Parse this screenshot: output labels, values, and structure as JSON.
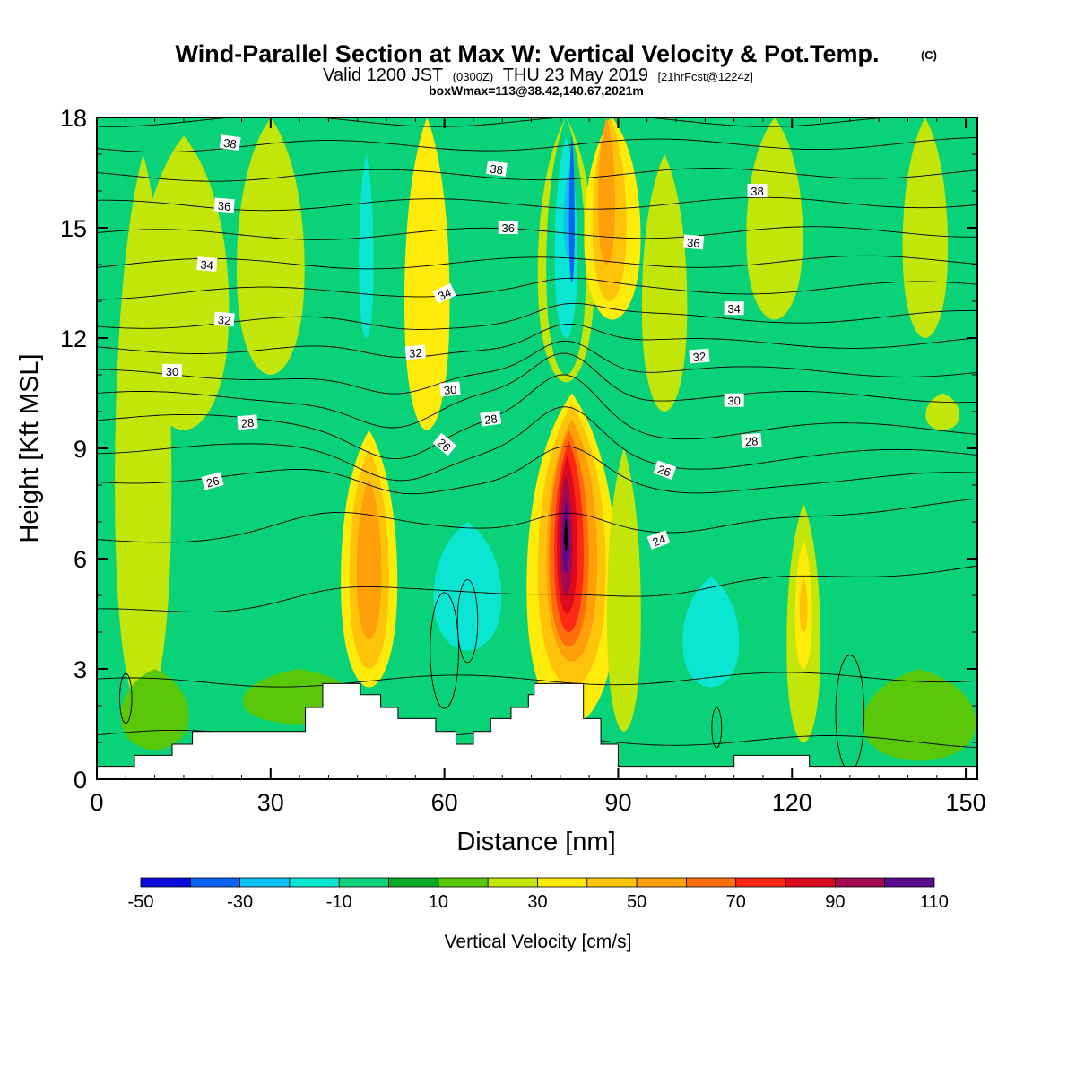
{
  "title": {
    "main": "Wind-Parallel Section at Max W: Vertical Velocity & Pot.Temp.",
    "copyright": "(C)",
    "valid_prefix": "Valid 1200 JST",
    "valid_zulu": "(0300Z)",
    "valid_date": "THU 23 May 2019",
    "forecast": "[21hrFcst@1224z]",
    "box": "boxWmax=113@38.42,140.67,2021m"
  },
  "chart_data": {
    "type": "heatmap",
    "xlabel": "Distance [nm]",
    "ylabel": "Height [Kft MSL]",
    "xlim": [
      0,
      152
    ],
    "ylim": [
      0,
      18
    ],
    "x_ticks": [
      "0",
      "30",
      "60",
      "90",
      "120",
      "150"
    ],
    "y_ticks": [
      "0",
      "3",
      "6",
      "9",
      "12",
      "15",
      "18"
    ],
    "colorbar": {
      "title": "Vertical Velocity [cm/s]",
      "labels": [
        "-50",
        "-30",
        "-10",
        "10",
        "30",
        "50",
        "70",
        "90",
        "110"
      ],
      "levels": [
        -50,
        -40,
        -30,
        -20,
        -10,
        0,
        10,
        20,
        30,
        40,
        50,
        60,
        70,
        80,
        90,
        100,
        110
      ],
      "colors": [
        "#0a0adc",
        "#0a64f5",
        "#0ac3f5",
        "#0ae6d2",
        "#0ad278",
        "#0aaa28",
        "#5ac80a",
        "#c3e60a",
        "#ffeb0a",
        "#ffc30a",
        "#ffa00a",
        "#ff6e0a",
        "#ff2814",
        "#dc0a1e",
        "#a00a50",
        "#5a0a8c"
      ],
      "background": "#0ad278"
    },
    "max_w": {
      "value": 113,
      "x": 81,
      "z": 7
    },
    "features": [
      {
        "kind": "band",
        "x": 8,
        "z": 1.8,
        "zTop": 17,
        "hw": 5,
        "level": 7
      },
      {
        "kind": "band",
        "x": 15,
        "z": 9.5,
        "zTop": 17.5,
        "hw": 8,
        "level": 7
      },
      {
        "kind": "band",
        "x": 30,
        "z": 11,
        "zTop": 18,
        "hw": 6,
        "level": 7
      },
      {
        "kind": "band",
        "x": 117,
        "z": 12.5,
        "zTop": 18,
        "hw": 5,
        "level": 7
      },
      {
        "kind": "band",
        "x": 143,
        "z": 12,
        "zTop": 18,
        "hw": 4,
        "level": 7
      },
      {
        "kind": "band",
        "x": 146,
        "z": 9.5,
        "zTop": 10.5,
        "hw": 3,
        "level": 7
      },
      {
        "kind": "band",
        "x": 57,
        "z": 9.5,
        "zTop": 18,
        "hw": 4,
        "level": 8
      },
      {
        "kind": "band",
        "x": 98,
        "z": 10,
        "zTop": 17,
        "hw": 4,
        "level": 7
      },
      {
        "kind": "band",
        "x": 47,
        "z": 10.5,
        "zTop": 18,
        "hw": 3.5,
        "level": 4
      },
      {
        "kind": "band",
        "x": 46.5,
        "z": 12,
        "zTop": 17,
        "hw": 1.3,
        "level": 3
      },
      {
        "kind": "band",
        "x": 70,
        "z": 13,
        "zTop": 18,
        "hw": 2,
        "level": 4
      },
      {
        "kind": "band",
        "x": 81,
        "z": 10.8,
        "zTop": 18,
        "hw": 5,
        "level": 7
      },
      {
        "kind": "band",
        "x": 81,
        "z": 11,
        "zTop": 18,
        "hw": 3.5,
        "level": 4
      },
      {
        "kind": "band",
        "x": 81,
        "z": 12,
        "zTop": 17.5,
        "hw": 2,
        "level": 3
      },
      {
        "kind": "band",
        "x": 81.5,
        "z": 14.2,
        "zTop": 16.5,
        "hw": 1,
        "level": 2
      },
      {
        "kind": "band",
        "x": 82,
        "z": 13.5,
        "zTop": 17.5,
        "hw": 0.5,
        "level": 1
      },
      {
        "kind": "band",
        "x": 89,
        "z": 12.5,
        "zTop": 18,
        "hw": 5,
        "level": 8
      },
      {
        "kind": "band",
        "x": 88.5,
        "z": 13,
        "zTop": 18,
        "hw": 3,
        "level": 9
      },
      {
        "kind": "band",
        "x": 88,
        "z": 14,
        "zTop": 18,
        "hw": 1.5,
        "level": 10
      },
      {
        "kind": "band",
        "x": 52,
        "z": 5,
        "zTop": 9.5,
        "hw": 8,
        "level": 4
      },
      {
        "kind": "band",
        "x": 60,
        "z": 1.3,
        "zTop": 7.5,
        "hw": 12,
        "level": 4
      },
      {
        "kind": "band",
        "x": 64,
        "z": 3.5,
        "zTop": 7,
        "hw": 6,
        "level": 3
      },
      {
        "kind": "band",
        "x": 35,
        "z": 3.5,
        "zTop": 8,
        "hw": 6,
        "level": 4
      },
      {
        "kind": "band",
        "x": 17,
        "z": 5.5,
        "zTop": 6.5,
        "hw": 2,
        "level": 4
      },
      {
        "kind": "band",
        "x": 110,
        "z": 1.5,
        "zTop": 6.5,
        "hw": 13,
        "level": 4
      },
      {
        "kind": "band",
        "x": 106,
        "z": 2.5,
        "zTop": 5.5,
        "hw": 5,
        "level": 3
      },
      {
        "kind": "band",
        "x": 128,
        "z": 3,
        "zTop": 6.5,
        "hw": 8,
        "level": 4
      },
      {
        "kind": "band",
        "x": 122,
        "z": 1,
        "zTop": 7.5,
        "hw": 3,
        "level": 7
      },
      {
        "kind": "band",
        "x": 122,
        "z": 3,
        "zTop": 6.5,
        "hw": 1.5,
        "level": 8
      },
      {
        "kind": "band",
        "x": 122,
        "z": 4,
        "zTop": 5.5,
        "hw": 0.7,
        "level": 9
      },
      {
        "kind": "band",
        "x": 142,
        "z": 0.5,
        "zTop": 3,
        "hw": 10,
        "level": 6
      },
      {
        "kind": "band",
        "x": 10,
        "z": 0.8,
        "zTop": 3,
        "hw": 6,
        "level": 6
      },
      {
        "kind": "band",
        "x": 35,
        "z": 1.5,
        "zTop": 3,
        "hw": 10,
        "level": 6
      },
      {
        "kind": "band",
        "x": 47,
        "z": 2.5,
        "zTop": 9.5,
        "hw": 5,
        "level": 8
      },
      {
        "kind": "band",
        "x": 47,
        "z": 3,
        "zTop": 9,
        "hw": 3.5,
        "level": 9
      },
      {
        "kind": "band",
        "x": 47,
        "z": 3.8,
        "zTop": 8.2,
        "hw": 2.2,
        "level": 10
      },
      {
        "kind": "band",
        "x": 82,
        "z": 1.5,
        "zTop": 10.5,
        "hw": 8,
        "level": 8
      },
      {
        "kind": "band",
        "x": 82,
        "z": 2.5,
        "zTop": 10.2,
        "hw": 6,
        "level": 9
      },
      {
        "kind": "band",
        "x": 82,
        "z": 3.2,
        "zTop": 9.8,
        "hw": 4.5,
        "level": 10
      },
      {
        "kind": "band",
        "x": 81.5,
        "z": 3.6,
        "zTop": 9.5,
        "hw": 3.5,
        "level": 11
      },
      {
        "kind": "band",
        "x": 81.5,
        "z": 4,
        "zTop": 9.2,
        "hw": 2.6,
        "level": 12
      },
      {
        "kind": "band",
        "x": 81.2,
        "z": 4.5,
        "zTop": 8.8,
        "hw": 1.8,
        "level": 13
      },
      {
        "kind": "band",
        "x": 81,
        "z": 5,
        "zTop": 8.3,
        "hw": 1.1,
        "level": 14
      },
      {
        "kind": "band",
        "x": 81,
        "z": 5.6,
        "zTop": 7.6,
        "hw": 0.6,
        "level": 15
      },
      {
        "kind": "band",
        "x": 81,
        "z": 6.2,
        "zTop": 7.1,
        "hw": 0.3,
        "level": 16
      },
      {
        "kind": "band",
        "x": 91,
        "z": 1.3,
        "zTop": 9,
        "hw": 3,
        "level": 7
      }
    ],
    "terrain": [
      [
        0,
        0.35
      ],
      [
        6.5,
        0.35
      ],
      [
        6.5,
        0.65
      ],
      [
        13,
        0.65
      ],
      [
        13,
        0.95
      ],
      [
        16.5,
        0.95
      ],
      [
        16.5,
        1.3
      ],
      [
        36,
        1.3
      ],
      [
        36,
        1.95
      ],
      [
        39,
        1.95
      ],
      [
        39,
        2.6
      ],
      [
        45.5,
        2.6
      ],
      [
        45.5,
        2.3
      ],
      [
        49,
        2.3
      ],
      [
        49,
        1.95
      ],
      [
        52,
        1.95
      ],
      [
        52,
        1.65
      ],
      [
        58.5,
        1.65
      ],
      [
        58.5,
        1.3
      ],
      [
        62,
        1.3
      ],
      [
        62,
        0.95
      ],
      [
        65,
        0.95
      ],
      [
        65,
        1.3
      ],
      [
        68,
        1.3
      ],
      [
        68,
        1.65
      ],
      [
        71.5,
        1.65
      ],
      [
        71.5,
        1.95
      ],
      [
        74.5,
        1.95
      ],
      [
        74.5,
        2.3
      ],
      [
        75.5,
        2.3
      ],
      [
        75.5,
        2.6
      ],
      [
        84,
        2.6
      ],
      [
        84,
        1.65
      ],
      [
        87,
        1.65
      ],
      [
        87,
        0.95
      ],
      [
        90,
        0.95
      ],
      [
        90,
        0.35
      ],
      [
        110,
        0.35
      ],
      [
        110,
        0.65
      ],
      [
        123,
        0.65
      ],
      [
        123,
        0.35
      ],
      [
        152,
        0.35
      ]
    ],
    "theta_contours": {
      "levels": [
        22,
        23,
        24,
        25,
        26,
        27,
        28,
        29,
        30,
        31,
        32,
        33,
        34,
        35,
        36,
        37,
        38,
        39
      ],
      "left_z": [
        1.2,
        2.6,
        4.5,
        6.5,
        8.2,
        9.0,
        9.8,
        10.4,
        11.0,
        11.7,
        12.4,
        13.2,
        14.0,
        14.8,
        15.6,
        16.4,
        17.2,
        17.9
      ],
      "right_z": [
        1.0,
        2.8,
        5.8,
        7.5,
        8.2,
        8.8,
        9.5,
        10.4,
        11.1,
        11.9,
        12.6,
        13.4,
        14.1,
        14.9,
        15.7,
        16.5,
        17.3,
        17.9
      ],
      "labels": [
        {
          "text": "24",
          "x": 97,
          "z": 6.5,
          "rotate": -20
        },
        {
          "text": "26",
          "x": 20,
          "z": 8.1,
          "rotate": -15
        },
        {
          "text": "26",
          "x": 60,
          "z": 9.1,
          "rotate": 40
        },
        {
          "text": "26",
          "x": 98,
          "z": 8.4,
          "rotate": 20
        },
        {
          "text": "28",
          "x": 26,
          "z": 9.7,
          "rotate": -5
        },
        {
          "text": "28",
          "x": 68,
          "z": 9.8,
          "rotate": -8
        },
        {
          "text": "28",
          "x": 113,
          "z": 9.2,
          "rotate": -5
        },
        {
          "text": "30",
          "x": 13,
          "z": 11.1,
          "rotate": 0
        },
        {
          "text": "30",
          "x": 61,
          "z": 10.6,
          "rotate": -5
        },
        {
          "text": "30",
          "x": 110,
          "z": 10.3,
          "rotate": 0
        },
        {
          "text": "32",
          "x": 22,
          "z": 12.5,
          "rotate": 5
        },
        {
          "text": "32",
          "x": 55,
          "z": 11.6,
          "rotate": -5
        },
        {
          "text": "32",
          "x": 104,
          "z": 11.5,
          "rotate": -5
        },
        {
          "text": "34",
          "x": 19,
          "z": 14.0,
          "rotate": 5
        },
        {
          "text": "34",
          "x": 60,
          "z": 13.2,
          "rotate": -25
        },
        {
          "text": "34",
          "x": 110,
          "z": 12.8,
          "rotate": 0
        },
        {
          "text": "36",
          "x": 22,
          "z": 15.6,
          "rotate": 5
        },
        {
          "text": "36",
          "x": 71,
          "z": 15.0,
          "rotate": 0
        },
        {
          "text": "36",
          "x": 103,
          "z": 14.6,
          "rotate": 5
        },
        {
          "text": "38",
          "x": 23,
          "z": 17.3,
          "rotate": 8
        },
        {
          "text": "38",
          "x": 69,
          "z": 16.6,
          "rotate": 8
        },
        {
          "text": "38",
          "x": 114,
          "z": 16.0,
          "rotate": 0
        }
      ]
    }
  }
}
